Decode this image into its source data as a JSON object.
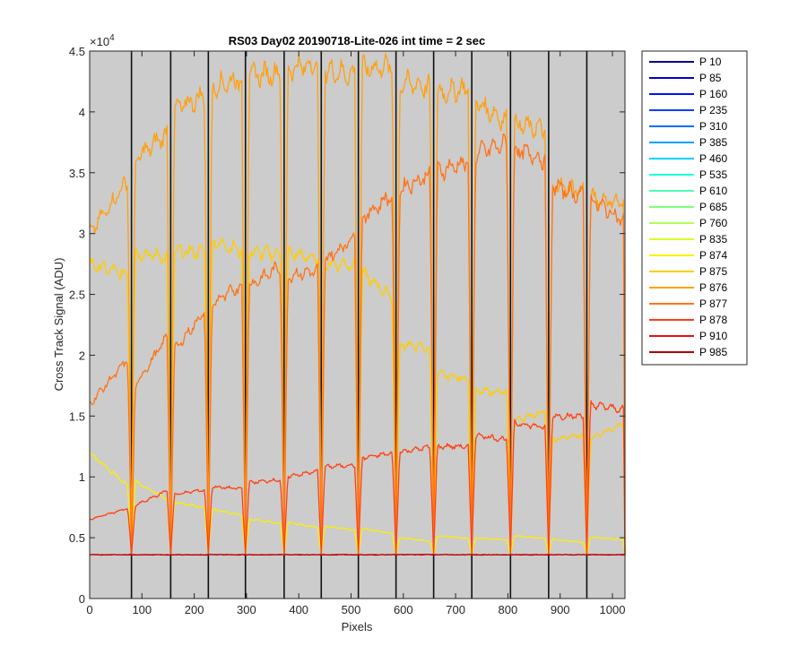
{
  "chart_data": {
    "type": "line",
    "title": "RS03 Day02 20190718-Lite-026 int time = 2 sec",
    "xlabel": "Pixels",
    "ylabel": "Cross Track Signal (ADU)",
    "xlim": [
      0,
      1024
    ],
    "ylim": [
      0,
      45000
    ],
    "x_ticks": [
      0,
      100,
      200,
      300,
      400,
      500,
      600,
      700,
      800,
      900,
      1000
    ],
    "y_ticks": [
      0,
      5000,
      10000,
      15000,
      20000,
      25000,
      30000,
      35000,
      40000,
      45000
    ],
    "y_tick_labels": [
      "0",
      "0.5",
      "1",
      "1.5",
      "2",
      "2.5",
      "3",
      "3.5",
      "4",
      "4.5"
    ],
    "y_exponent_label": "×10",
    "y_exponent_power": "4",
    "grid": false,
    "legend_position": "outside-top-right",
    "background_color": "#cccccc",
    "slit_boundaries": [
      80,
      155,
      227,
      298,
      372,
      443,
      514,
      586,
      658,
      731,
      805,
      878,
      951
    ],
    "baseline": 3600,
    "series": [
      {
        "name": "P 10",
        "color": "#00008f",
        "segment_levels": []
      },
      {
        "name": "P 85",
        "color": "#0000c8",
        "segment_levels": []
      },
      {
        "name": "P 160",
        "color": "#0010ff",
        "segment_levels": []
      },
      {
        "name": "P 235",
        "color": "#0040ff",
        "segment_levels": []
      },
      {
        "name": "P 310",
        "color": "#0070ff",
        "segment_levels": []
      },
      {
        "name": "P 385",
        "color": "#00a0ff",
        "segment_levels": []
      },
      {
        "name": "P 460",
        "color": "#00d0ff",
        "segment_levels": []
      },
      {
        "name": "P 535",
        "color": "#20ffe0",
        "segment_levels": []
      },
      {
        "name": "P 610",
        "color": "#50ffb0",
        "segment_levels": []
      },
      {
        "name": "P 685",
        "color": "#80ff80",
        "segment_levels": []
      },
      {
        "name": "P 760",
        "color": "#b0ff50",
        "segment_levels": []
      },
      {
        "name": "P 835",
        "color": "#d8ff20",
        "segment_levels": []
      },
      {
        "name": "P 874",
        "color": "#ffee00",
        "segment_levels": [
          [
            12000,
            9000
          ],
          [
            9800,
            8000
          ],
          [
            8000,
            7400
          ],
          [
            7400,
            6800
          ],
          [
            6600,
            6100
          ],
          [
            6300,
            5800
          ],
          [
            6000,
            5600
          ],
          [
            5800,
            5300
          ],
          [
            5000,
            4700
          ],
          [
            5200,
            4900
          ],
          [
            5000,
            4800
          ],
          [
            5200,
            4900
          ],
          [
            4900,
            4600
          ],
          [
            5100,
            4800
          ]
        ]
      },
      {
        "name": "P 875",
        "color": "#ffcc00",
        "segment_levels": [
          [
            27500,
            26500
          ],
          [
            28500,
            28000
          ],
          [
            28500,
            28500
          ],
          [
            29500,
            28500
          ],
          [
            28500,
            28300
          ],
          [
            28500,
            27800
          ],
          [
            27500,
            27500
          ],
          [
            27000,
            24500
          ],
          [
            21000,
            20500
          ],
          [
            18500,
            18000
          ],
          [
            17000,
            17000
          ],
          [
            14500,
            15500
          ],
          [
            13000,
            13500
          ],
          [
            13000,
            14500
          ]
        ]
      },
      {
        "name": "P 876",
        "color": "#ffa010",
        "segment_levels": [
          [
            30000,
            34800
          ],
          [
            35800,
            38500
          ],
          [
            40000,
            41500
          ],
          [
            42000,
            42800
          ],
          [
            43000,
            43200
          ],
          [
            43500,
            44000
          ],
          [
            43500,
            43000
          ],
          [
            43500,
            43800
          ],
          [
            42500,
            42000
          ],
          [
            41500,
            42000
          ],
          [
            41000,
            39000
          ],
          [
            39000,
            38500
          ],
          [
            34000,
            33500
          ],
          [
            33000,
            32500
          ]
        ]
      },
      {
        "name": "P 877",
        "color": "#ff7418",
        "segment_levels": [
          [
            16000,
            20000
          ],
          [
            17000,
            22000
          ],
          [
            20000,
            24000
          ],
          [
            24000,
            26000
          ],
          [
            25500,
            27500
          ],
          [
            26500,
            27000
          ],
          [
            27500,
            30000
          ],
          [
            31000,
            33500
          ],
          [
            33500,
            35000
          ],
          [
            35000,
            36000
          ],
          [
            36500,
            37500
          ],
          [
            37000,
            36000
          ],
          [
            34000,
            33000
          ],
          [
            33000,
            31000
          ]
        ]
      },
      {
        "name": "P 878",
        "color": "#ff4010",
        "segment_levels": [
          [
            6500,
            7500
          ],
          [
            7500,
            9000
          ],
          [
            8500,
            9000
          ],
          [
            9200,
            9000
          ],
          [
            9500,
            9800
          ],
          [
            10000,
            10500
          ],
          [
            10800,
            11000
          ],
          [
            11500,
            12000
          ],
          [
            12000,
            12500
          ],
          [
            12500,
            12500
          ],
          [
            13500,
            13000
          ],
          [
            14500,
            14000
          ],
          [
            15000,
            15000
          ],
          [
            16000,
            15500
          ]
        ]
      },
      {
        "name": "P 910",
        "color": "#e81010",
        "segment_levels": []
      },
      {
        "name": "P 985",
        "color": "#b00000",
        "segment_levels": []
      }
    ]
  }
}
